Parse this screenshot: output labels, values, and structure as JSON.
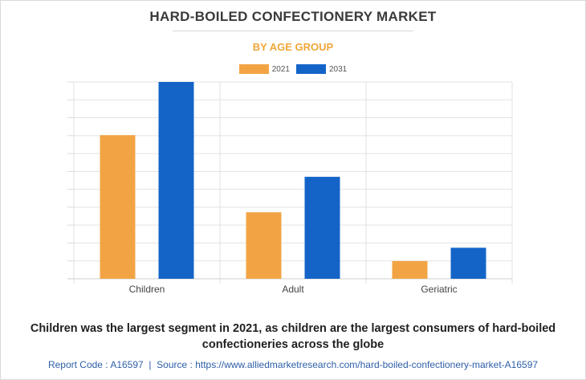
{
  "chart_data": {
    "type": "bar",
    "title": "HARD-BOILED CONFECTIONERY MARKET",
    "subtitle": "BY AGE GROUP",
    "categories": [
      "Children",
      "Adult",
      "Geriatric"
    ],
    "series": [
      {
        "name": "2021",
        "color": "#f2a444",
        "values": [
          8.1,
          3.75,
          1.0
        ]
      },
      {
        "name": "2031",
        "color": "#1464c8",
        "values": [
          11.1,
          5.75,
          1.75
        ]
      }
    ],
    "ylim": [
      0,
      11.1
    ],
    "gridlines": 11,
    "grid": true,
    "legend_position": "top-center"
  },
  "caption": "Children was the largest segment in 2021, as children are the largest consumers of hard-boiled confectioneries across the globe",
  "footer": {
    "report_code": "Report Code : A16597",
    "separator": "|",
    "source": "Source : https://www.alliedmarketresearch.com/hard-boiled-confectionery-market-A16597"
  }
}
